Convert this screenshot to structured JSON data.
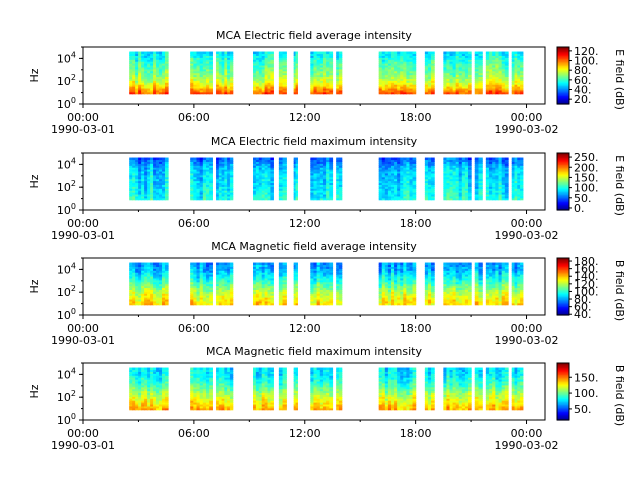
{
  "x_ticks": [
    {
      "hours": 0,
      "label": "00:00",
      "date": "1990-03-01"
    },
    {
      "hours": 6,
      "label": "06:00",
      "date": ""
    },
    {
      "hours": 12,
      "label": "12:00",
      "date": ""
    },
    {
      "hours": 18,
      "label": "18:00",
      "date": ""
    },
    {
      "hours": 24,
      "label": "00:00",
      "date": "1990-03-02"
    }
  ],
  "chart_data": [
    {
      "type": "heatmap",
      "title": "MCA  Electric field average intensity",
      "ylabel": "Hz",
      "y_scale": "log",
      "ylim": [
        1,
        100000
      ],
      "y_ticks": [
        {
          "value": 1,
          "base": "10",
          "exp": "0"
        },
        {
          "value": 100,
          "base": "10",
          "exp": "2"
        },
        {
          "value": 10000,
          "base": "10",
          "exp": "4"
        }
      ],
      "xlim": [
        "1990-03-01 00:00",
        "1990-03-02 01:00"
      ],
      "colorbar": {
        "label": "E field (dB)",
        "colormap": "jet",
        "ticks": [
          "20.",
          "40.",
          "60.",
          "80.",
          "100.",
          "120."
        ],
        "tick_values": [
          20,
          40,
          60,
          80,
          100,
          120
        ],
        "range": [
          10,
          128
        ]
      },
      "segments_hours": [
        [
          2.5,
          4.6
        ],
        [
          5.8,
          7.0
        ],
        [
          7.2,
          8.1
        ],
        [
          9.2,
          10.3
        ],
        [
          10.6,
          11.0
        ],
        [
          11.4,
          11.6
        ],
        [
          12.3,
          13.5
        ],
        [
          13.7,
          14.0
        ],
        [
          16.0,
          18.0
        ],
        [
          18.5,
          19.0
        ],
        [
          19.5,
          21.0
        ],
        [
          21.2,
          21.6
        ],
        [
          21.8,
          23.0
        ],
        [
          23.2,
          23.8
        ]
      ],
      "spectrum_profile": [
        {
          "freq_hz": 10,
          "level": 0.8
        },
        {
          "freq_hz": 30,
          "level": 0.68
        },
        {
          "freq_hz": 100,
          "level": 0.58
        },
        {
          "freq_hz": 300,
          "level": 0.52
        },
        {
          "freq_hz": 1000,
          "level": 0.48
        },
        {
          "freq_hz": 3000,
          "level": 0.45
        },
        {
          "freq_hz": 10000,
          "level": 0.4
        },
        {
          "freq_hz": 30000,
          "level": 0.36
        }
      ]
    },
    {
      "type": "heatmap",
      "title": "MCA  Electric field maximum intensity",
      "ylabel": "Hz",
      "y_scale": "log",
      "ylim": [
        1,
        100000
      ],
      "y_ticks": [
        {
          "value": 1,
          "base": "10",
          "exp": "0"
        },
        {
          "value": 100,
          "base": "10",
          "exp": "2"
        },
        {
          "value": 10000,
          "base": "10",
          "exp": "4"
        }
      ],
      "xlim": [
        "1990-03-01 00:00",
        "1990-03-02 01:00"
      ],
      "colorbar": {
        "label": "E field (dB)",
        "colormap": "jet",
        "ticks": [
          "0.",
          "50.",
          "100.",
          "150.",
          "200.",
          "250."
        ],
        "tick_values": [
          0,
          50,
          100,
          150,
          200,
          250
        ],
        "range": [
          -10,
          270
        ]
      },
      "segments_hours": [
        [
          2.5,
          4.6
        ],
        [
          5.8,
          7.0
        ],
        [
          7.2,
          8.1
        ],
        [
          9.2,
          10.3
        ],
        [
          10.6,
          11.0
        ],
        [
          11.4,
          11.6
        ],
        [
          12.3,
          13.5
        ],
        [
          13.7,
          14.0
        ],
        [
          16.0,
          18.0
        ],
        [
          18.5,
          19.0
        ],
        [
          19.5,
          21.0
        ],
        [
          21.2,
          21.6
        ],
        [
          21.8,
          23.0
        ],
        [
          23.2,
          23.8
        ]
      ],
      "spectrum_profile": [
        {
          "freq_hz": 10,
          "level": 0.4
        },
        {
          "freq_hz": 30,
          "level": 0.38
        },
        {
          "freq_hz": 100,
          "level": 0.36
        },
        {
          "freq_hz": 300,
          "level": 0.35
        },
        {
          "freq_hz": 1000,
          "level": 0.34
        },
        {
          "freq_hz": 3000,
          "level": 0.33
        },
        {
          "freq_hz": 10000,
          "level": 0.28
        },
        {
          "freq_hz": 30000,
          "level": 0.22
        }
      ]
    },
    {
      "type": "heatmap",
      "title": "MCA  Magnetic field average intensity",
      "ylabel": "Hz",
      "y_scale": "log",
      "ylim": [
        1,
        100000
      ],
      "y_ticks": [
        {
          "value": 1,
          "base": "10",
          "exp": "0"
        },
        {
          "value": 100,
          "base": "10",
          "exp": "2"
        },
        {
          "value": 10000,
          "base": "10",
          "exp": "4"
        }
      ],
      "xlim": [
        "1990-03-01 00:00",
        "1990-03-02 01:00"
      ],
      "colorbar": {
        "label": "B field (dB)",
        "colormap": "jet",
        "ticks": [
          "40.",
          "60.",
          "80.",
          "100.",
          "120.",
          "140.",
          "160.",
          "180."
        ],
        "tick_values": [
          40,
          60,
          80,
          100,
          120,
          140,
          160,
          180
        ],
        "range": [
          38,
          188
        ]
      },
      "segments_hours": [
        [
          2.5,
          4.6
        ],
        [
          5.8,
          7.0
        ],
        [
          7.2,
          8.1
        ],
        [
          9.2,
          10.3
        ],
        [
          10.6,
          11.0
        ],
        [
          11.4,
          11.6
        ],
        [
          12.3,
          13.5
        ],
        [
          13.7,
          14.0
        ],
        [
          16.0,
          18.0
        ],
        [
          18.5,
          19.0
        ],
        [
          19.5,
          21.0
        ],
        [
          21.2,
          21.6
        ],
        [
          21.8,
          23.0
        ],
        [
          23.2,
          23.8
        ]
      ],
      "spectrum_profile": [
        {
          "freq_hz": 10,
          "level": 0.66
        },
        {
          "freq_hz": 30,
          "level": 0.62
        },
        {
          "freq_hz": 100,
          "level": 0.56
        },
        {
          "freq_hz": 300,
          "level": 0.5
        },
        {
          "freq_hz": 1000,
          "level": 0.42
        },
        {
          "freq_hz": 3000,
          "level": 0.36
        },
        {
          "freq_hz": 10000,
          "level": 0.3
        },
        {
          "freq_hz": 30000,
          "level": 0.28
        }
      ]
    },
    {
      "type": "heatmap",
      "title": "MCA  Magnetic field maximum intensity",
      "ylabel": "Hz",
      "y_scale": "log",
      "ylim": [
        1,
        100000
      ],
      "y_ticks": [
        {
          "value": 1,
          "base": "10",
          "exp": "0"
        },
        {
          "value": 100,
          "base": "10",
          "exp": "2"
        },
        {
          "value": 10000,
          "base": "10",
          "exp": "4"
        }
      ],
      "xlim": [
        "1990-03-01 00:00",
        "1990-03-02 01:00"
      ],
      "colorbar": {
        "label": "B field (dB)",
        "colormap": "jet",
        "ticks": [
          "50.",
          "100.",
          "150."
        ],
        "tick_values": [
          50,
          100,
          150
        ],
        "range": [
          15,
          195
        ]
      },
      "segments_hours": [
        [
          2.5,
          4.6
        ],
        [
          5.8,
          7.0
        ],
        [
          7.2,
          8.1
        ],
        [
          9.2,
          10.3
        ],
        [
          10.6,
          11.0
        ],
        [
          11.4,
          11.6
        ],
        [
          12.3,
          13.5
        ],
        [
          13.7,
          14.0
        ],
        [
          16.0,
          18.0
        ],
        [
          18.5,
          19.0
        ],
        [
          19.5,
          21.0
        ],
        [
          21.2,
          21.6
        ],
        [
          21.8,
          23.0
        ],
        [
          23.2,
          23.8
        ]
      ],
      "spectrum_profile": [
        {
          "freq_hz": 10,
          "level": 0.7
        },
        {
          "freq_hz": 30,
          "level": 0.64
        },
        {
          "freq_hz": 100,
          "level": 0.58
        },
        {
          "freq_hz": 300,
          "level": 0.52
        },
        {
          "freq_hz": 1000,
          "level": 0.45
        },
        {
          "freq_hz": 3000,
          "level": 0.4
        },
        {
          "freq_hz": 10000,
          "level": 0.36
        },
        {
          "freq_hz": 30000,
          "level": 0.35
        }
      ]
    }
  ]
}
